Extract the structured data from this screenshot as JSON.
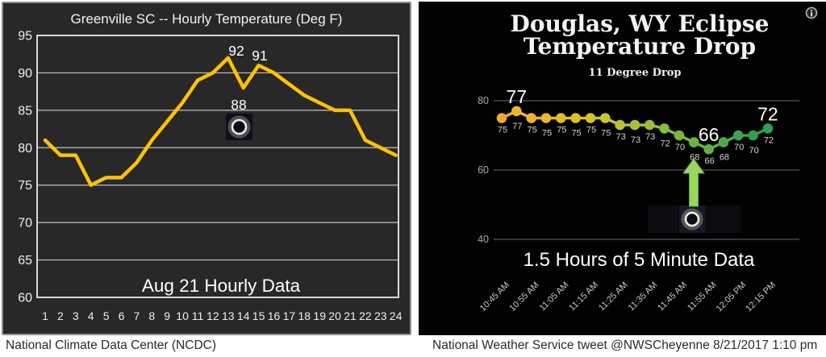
{
  "captions": {
    "left": "National Climate Data Center (NCDC)",
    "right": "National Weather Service tweet @NWSCheyenne 8/21/2017 1:10 pm"
  },
  "chart_data": [
    {
      "id": "greenville",
      "type": "line",
      "title": "Greenville SC -- Hourly Temperature (Deg F)",
      "note": "Aug 21 Hourly Data",
      "x_categories": [
        "1",
        "2",
        "3",
        "4",
        "5",
        "6",
        "7",
        "8",
        "9",
        "10",
        "11",
        "12",
        "13",
        "14",
        "15",
        "16",
        "17",
        "18",
        "19",
        "20",
        "21",
        "22",
        "23",
        "24"
      ],
      "values": [
        81,
        79,
        79,
        75,
        76,
        76,
        78,
        81,
        83.5,
        86,
        89,
        90,
        92,
        88,
        91,
        90,
        88.5,
        87,
        86,
        85,
        85,
        81,
        80,
        79
      ],
      "yticks": [
        60,
        65,
        70,
        75,
        80,
        85,
        90,
        95
      ],
      "ylim": [
        60,
        95
      ],
      "grid": true,
      "line_color": "#FFC107",
      "annotations": [
        {
          "text": "92",
          "x": 13
        },
        {
          "text": "88",
          "x": 14
        },
        {
          "text": "91",
          "x": 15
        }
      ],
      "eclipse_icon": "total-eclipse-photo"
    },
    {
      "id": "douglas",
      "type": "line",
      "title_lines": [
        "Douglas, WY Eclipse",
        "Temperature Drop"
      ],
      "subtitle": "11 Degree Drop",
      "note": "1.5 Hours of 5 Minute Data",
      "values": [
        75,
        77,
        75,
        75,
        75,
        75,
        75,
        75,
        73,
        73,
        73,
        72,
        70,
        68,
        66,
        68,
        70,
        70,
        72
      ],
      "point_colors": [
        "#f1a92f",
        "#f3b335",
        "#efb133",
        "#e9b634",
        "#e2bb34",
        "#dabf33",
        "#d2c233",
        "#c9c434",
        "#b9c236",
        "#a8c038",
        "#97bd3a",
        "#88ba3d",
        "#79b73f",
        "#6bb342",
        "#60ae44",
        "#4fa948",
        "#3da44b",
        "#2f9f4e",
        "#27a551"
      ],
      "big_labels": [
        {
          "text": "77",
          "index": 1
        },
        {
          "text": "66",
          "index": 14
        },
        {
          "text": "72",
          "index": 18
        }
      ],
      "yticks": [
        40,
        60,
        80
      ],
      "ylim": [
        40,
        80
      ],
      "x_tick_labels": [
        "10:45 AM",
        "10:55 AM",
        "11:05 AM",
        "11:15 AM",
        "11:25 AM",
        "11:35 AM",
        "11:45 AM",
        "11:55 AM",
        "12:05 PM",
        "12:15 PM"
      ],
      "arrow_color": "#98d75c",
      "eclipse_icon": "total-eclipse-photo",
      "info_icon": "info-icon"
    }
  ]
}
